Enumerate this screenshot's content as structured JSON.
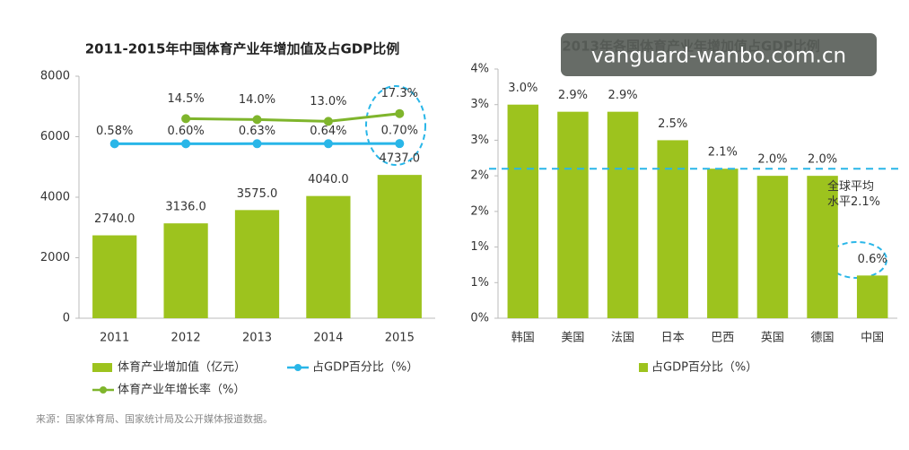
{
  "chart_data": [
    {
      "type": "combo",
      "title": "2011-2015年中国体育产业年增加值及占GDP比例",
      "categories": [
        "2011",
        "2012",
        "2013",
        "2014",
        "2015"
      ],
      "ylim": [
        0,
        8000
      ],
      "yticks": [
        0,
        2000,
        4000,
        6000,
        8000
      ],
      "y2lim": [
        -96,
        38
      ],
      "legend": "bottom",
      "series": [
        {
          "name": "体育产业增加值（亿元）",
          "type": "bar",
          "color": "#9dc31e",
          "values": [
            2740.0,
            3136.0,
            3575.0,
            4040.0,
            4737.0
          ],
          "value_labels": [
            "2740.0",
            "3136.0",
            "3575.0",
            "4040.0",
            "4737.0"
          ]
        },
        {
          "name": "占GDP百分比（%）",
          "type": "line",
          "axis": "y2",
          "color": "#29b6e8",
          "values": [
            0.58,
            0.6,
            0.63,
            0.64,
            0.7
          ],
          "value_labels": [
            "0.58%",
            "0.60%",
            "0.63%",
            "0.64%",
            "0.70%"
          ]
        },
        {
          "name": "体育产业年增长率（%）",
          "type": "line",
          "axis": "y2",
          "color": "#7fb52c",
          "values": [
            null,
            14.5,
            14.0,
            13.0,
            17.3
          ],
          "value_labels": [
            null,
            "14.5%",
            "14.0%",
            "13.0%",
            "17.3%"
          ]
        }
      ]
    },
    {
      "type": "bar",
      "title": "2013年各国体育产业年增加值占GDP比例",
      "categories": [
        "韩国",
        "美国",
        "法国",
        "日本",
        "巴西",
        "英国",
        "德国",
        "中国"
      ],
      "ylim": [
        0,
        3.5
      ],
      "yticks": [
        {
          "value": 0,
          "label": "0%"
        },
        {
          "value": 0.5,
          "label": "1%"
        },
        {
          "value": 1,
          "label": "1%"
        },
        {
          "value": 1.5,
          "label": "2%"
        },
        {
          "value": 2,
          "label": "2%"
        },
        {
          "value": 2.5,
          "label": "3%"
        },
        {
          "value": 3,
          "label": "3%"
        },
        {
          "value": 3.5,
          "label": "4%"
        }
      ],
      "legend": "bottom",
      "series": [
        {
          "name": "占GDP百分比（%）",
          "type": "bar",
          "color": "#9dc31e",
          "values": [
            3.0,
            2.9,
            2.9,
            2.5,
            2.1,
            2.0,
            2.0,
            0.6
          ],
          "value_labels": [
            "3.0%",
            "2.9%",
            "2.9%",
            "2.5%",
            "2.1%",
            "2.0%",
            "2.0%",
            "0.6%"
          ]
        }
      ],
      "reference": {
        "value": 2.1,
        "label": "全球平均水平2.1%",
        "color": "#29b6e8"
      }
    }
  ],
  "source": "来源：国家体育局、国家统计局及公开媒体报道数据。",
  "watermark": "vanguard-wanbo.com.cn"
}
